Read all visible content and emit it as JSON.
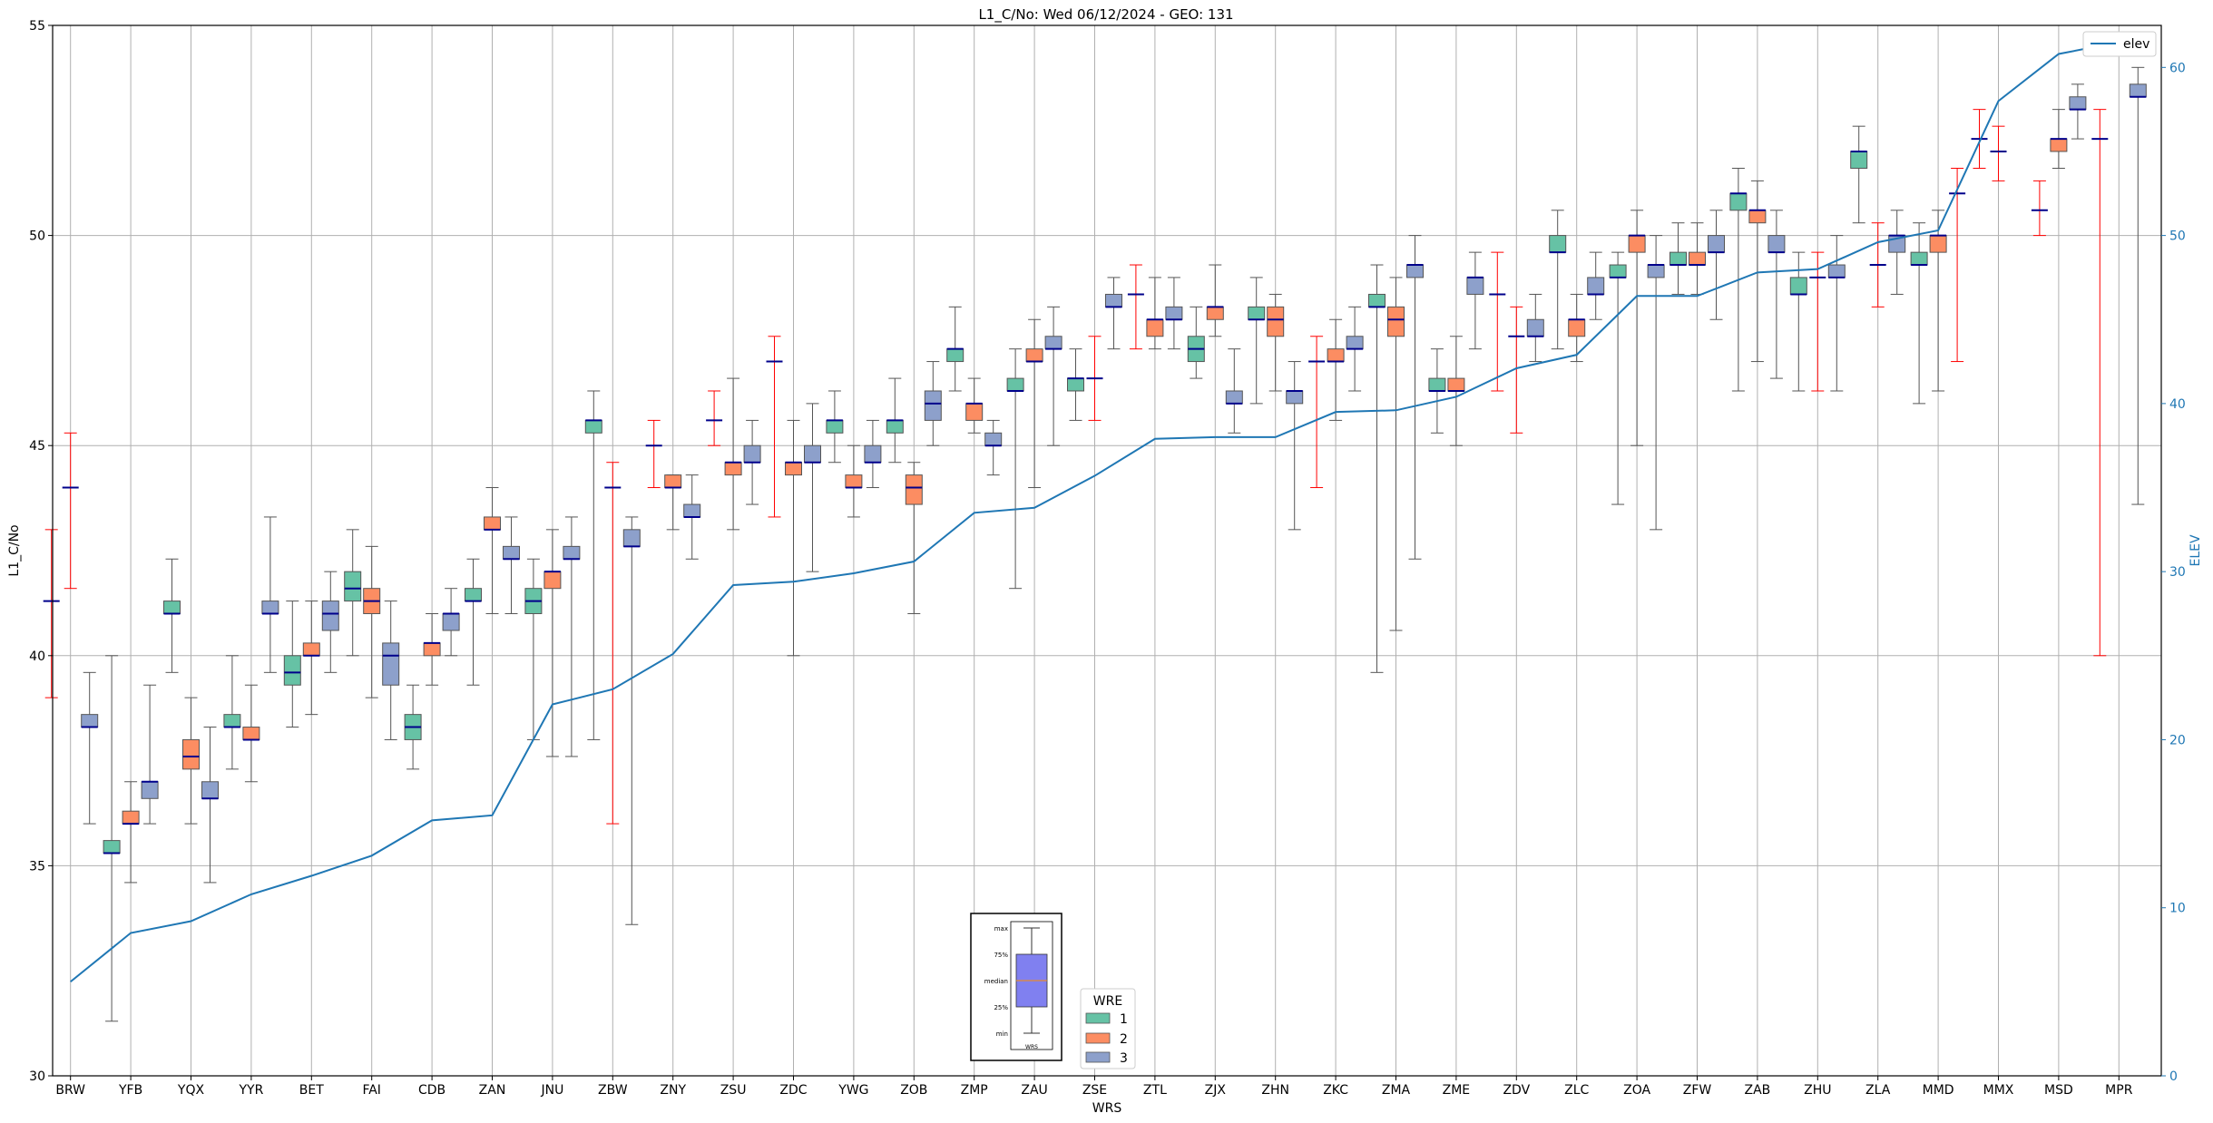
{
  "chart_data": {
    "type": "box",
    "title": "L1_C/No: Wed 06/12/2024 - GEO: 131",
    "xlabel": "WRS",
    "ylabel": "L1_C/No",
    "y2label": "ELEV",
    "ylim": [
      30,
      55
    ],
    "y2lim": [
      0,
      62.5
    ],
    "yticks": [
      "30",
      "35",
      "40",
      "45",
      "50",
      "55"
    ],
    "y2ticks": [
      "0",
      "10",
      "20",
      "30",
      "40",
      "50",
      "60"
    ],
    "grid": true,
    "categories": [
      "BRW",
      "YFB",
      "YQX",
      "YYR",
      "BET",
      "FAI",
      "CDB",
      "ZAN",
      "JNU",
      "ZBW",
      "ZNY",
      "ZSU",
      "ZDC",
      "YWG",
      "ZOB",
      "ZMP",
      "ZAU",
      "ZSE",
      "ZTL",
      "ZJX",
      "ZHN",
      "ZKC",
      "ZMA",
      "ZME",
      "ZDV",
      "ZLC",
      "ZOA",
      "ZFW",
      "ZAB",
      "ZHU",
      "ZLA",
      "MMD",
      "MMX",
      "MSD",
      "MPR"
    ],
    "wre_colors": {
      "1": "#66c2a5",
      "2": "#fc8d62",
      "3": "#8da0cb"
    },
    "flat_whisker_color": "#ff0000",
    "median_color": "#00008b",
    "boxes": [
      {
        "cat": "BRW",
        "wre": "1",
        "min": 39.0,
        "q1": 41.3,
        "median": 41.3,
        "q3": 41.3,
        "max": 43.0
      },
      {
        "cat": "BRW",
        "wre": "2",
        "min": 41.6,
        "q1": 44.0,
        "median": 44.0,
        "q3": 44.0,
        "max": 45.3
      },
      {
        "cat": "BRW",
        "wre": "3",
        "min": 36.0,
        "q1": 38.3,
        "median": 38.3,
        "q3": 38.6,
        "max": 39.6
      },
      {
        "cat": "YFB",
        "wre": "1",
        "min": 31.3,
        "q1": 35.3,
        "median": 35.3,
        "q3": 35.6,
        "max": 40.0
      },
      {
        "cat": "YFB",
        "wre": "2",
        "min": 34.6,
        "q1": 36.0,
        "median": 36.0,
        "q3": 36.3,
        "max": 37.0
      },
      {
        "cat": "YFB",
        "wre": "3",
        "min": 36.0,
        "q1": 36.6,
        "median": 37.0,
        "q3": 37.0,
        "max": 39.3
      },
      {
        "cat": "YQX",
        "wre": "1",
        "min": 39.6,
        "q1": 41.0,
        "median": 41.0,
        "q3": 41.3,
        "max": 42.3
      },
      {
        "cat": "YQX",
        "wre": "2",
        "min": 36.0,
        "q1": 37.3,
        "median": 37.6,
        "q3": 38.0,
        "max": 39.0
      },
      {
        "cat": "YQX",
        "wre": "3",
        "min": 34.6,
        "q1": 36.6,
        "median": 36.6,
        "q3": 37.0,
        "max": 38.3
      },
      {
        "cat": "YYR",
        "wre": "1",
        "min": 37.3,
        "q1": 38.3,
        "median": 38.3,
        "q3": 38.6,
        "max": 40.0
      },
      {
        "cat": "YYR",
        "wre": "2",
        "min": 37.0,
        "q1": 38.0,
        "median": 38.0,
        "q3": 38.3,
        "max": 39.3
      },
      {
        "cat": "YYR",
        "wre": "3",
        "min": 39.6,
        "q1": 41.0,
        "median": 41.0,
        "q3": 41.3,
        "max": 43.3
      },
      {
        "cat": "BET",
        "wre": "1",
        "min": 38.3,
        "q1": 39.3,
        "median": 39.6,
        "q3": 40.0,
        "max": 41.3
      },
      {
        "cat": "BET",
        "wre": "2",
        "min": 38.6,
        "q1": 40.0,
        "median": 40.0,
        "q3": 40.3,
        "max": 41.3
      },
      {
        "cat": "BET",
        "wre": "3",
        "min": 39.6,
        "q1": 40.6,
        "median": 41.0,
        "q3": 41.3,
        "max": 42.0
      },
      {
        "cat": "FAI",
        "wre": "1",
        "min": 40.0,
        "q1": 41.3,
        "median": 41.6,
        "q3": 42.0,
        "max": 43.0
      },
      {
        "cat": "FAI",
        "wre": "2",
        "min": 39.0,
        "q1": 41.0,
        "median": 41.3,
        "q3": 41.6,
        "max": 42.6
      },
      {
        "cat": "FAI",
        "wre": "3",
        "min": 38.0,
        "q1": 39.3,
        "median": 40.0,
        "q3": 40.3,
        "max": 41.3
      },
      {
        "cat": "CDB",
        "wre": "1",
        "min": 37.3,
        "q1": 38.0,
        "median": 38.3,
        "q3": 38.6,
        "max": 39.3
      },
      {
        "cat": "CDB",
        "wre": "2",
        "min": 39.3,
        "q1": 40.0,
        "median": 40.3,
        "q3": 40.3,
        "max": 41.0
      },
      {
        "cat": "CDB",
        "wre": "3",
        "min": 40.0,
        "q1": 40.6,
        "median": 41.0,
        "q3": 41.0,
        "max": 41.6
      },
      {
        "cat": "ZAN",
        "wre": "1",
        "min": 39.3,
        "q1": 41.3,
        "median": 41.3,
        "q3": 41.6,
        "max": 42.3
      },
      {
        "cat": "ZAN",
        "wre": "2",
        "min": 41.0,
        "q1": 43.0,
        "median": 43.0,
        "q3": 43.3,
        "max": 44.0
      },
      {
        "cat": "ZAN",
        "wre": "3",
        "min": 41.0,
        "q1": 42.3,
        "median": 42.3,
        "q3": 42.6,
        "max": 43.3
      },
      {
        "cat": "JNU",
        "wre": "1",
        "min": 38.0,
        "q1": 41.0,
        "median": 41.3,
        "q3": 41.6,
        "max": 42.3
      },
      {
        "cat": "JNU",
        "wre": "2",
        "min": 37.6,
        "q1": 41.6,
        "median": 42.0,
        "q3": 42.0,
        "max": 43.0
      },
      {
        "cat": "JNU",
        "wre": "3",
        "min": 37.6,
        "q1": 42.3,
        "median": 42.3,
        "q3": 42.6,
        "max": 43.3
      },
      {
        "cat": "ZBW",
        "wre": "1",
        "min": 38.0,
        "q1": 45.3,
        "median": 45.6,
        "q3": 45.6,
        "max": 46.3
      },
      {
        "cat": "ZBW",
        "wre": "2",
        "min": 36.0,
        "q1": 44.0,
        "median": 44.0,
        "q3": 44.0,
        "max": 44.6
      },
      {
        "cat": "ZBW",
        "wre": "3",
        "min": 33.6,
        "q1": 42.6,
        "median": 42.6,
        "q3": 43.0,
        "max": 43.3
      },
      {
        "cat": "ZNY",
        "wre": "1",
        "min": 44.0,
        "q1": 45.0,
        "median": 45.0,
        "q3": 45.0,
        "max": 45.6
      },
      {
        "cat": "ZNY",
        "wre": "2",
        "min": 43.0,
        "q1": 44.0,
        "median": 44.0,
        "q3": 44.3,
        "max": 44.3
      },
      {
        "cat": "ZNY",
        "wre": "3",
        "min": 42.3,
        "q1": 43.3,
        "median": 43.3,
        "q3": 43.6,
        "max": 44.3
      },
      {
        "cat": "ZSU",
        "wre": "1",
        "min": 45.0,
        "q1": 45.6,
        "median": 45.6,
        "q3": 45.6,
        "max": 46.3
      },
      {
        "cat": "ZSU",
        "wre": "2",
        "min": 43.0,
        "q1": 44.3,
        "median": 44.6,
        "q3": 44.6,
        "max": 46.6
      },
      {
        "cat": "ZSU",
        "wre": "3",
        "min": 43.6,
        "q1": 44.6,
        "median": 44.6,
        "q3": 45.0,
        "max": 45.6
      },
      {
        "cat": "ZDC",
        "wre": "1",
        "min": 43.3,
        "q1": 47.0,
        "median": 47.0,
        "q3": 47.0,
        "max": 47.6
      },
      {
        "cat": "ZDC",
        "wre": "2",
        "min": 40.0,
        "q1": 44.3,
        "median": 44.6,
        "q3": 44.6,
        "max": 45.6
      },
      {
        "cat": "ZDC",
        "wre": "3",
        "min": 42.0,
        "q1": 44.6,
        "median": 44.6,
        "q3": 45.0,
        "max": 46.0
      },
      {
        "cat": "YWG",
        "wre": "1",
        "min": 44.6,
        "q1": 45.3,
        "median": 45.6,
        "q3": 45.6,
        "max": 46.3
      },
      {
        "cat": "YWG",
        "wre": "2",
        "min": 43.3,
        "q1": 44.0,
        "median": 44.0,
        "q3": 44.3,
        "max": 45.0
      },
      {
        "cat": "YWG",
        "wre": "3",
        "min": 44.0,
        "q1": 44.6,
        "median": 44.6,
        "q3": 45.0,
        "max": 45.6
      },
      {
        "cat": "ZOB",
        "wre": "1",
        "min": 44.6,
        "q1": 45.3,
        "median": 45.6,
        "q3": 45.6,
        "max": 46.6
      },
      {
        "cat": "ZOB",
        "wre": "2",
        "min": 41.0,
        "q1": 43.6,
        "median": 44.0,
        "q3": 44.3,
        "max": 44.6
      },
      {
        "cat": "ZOB",
        "wre": "3",
        "min": 45.0,
        "q1": 45.6,
        "median": 46.0,
        "q3": 46.3,
        "max": 47.0
      },
      {
        "cat": "ZMP",
        "wre": "1",
        "min": 46.3,
        "q1": 47.0,
        "median": 47.3,
        "q3": 47.3,
        "max": 48.3
      },
      {
        "cat": "ZMP",
        "wre": "2",
        "min": 45.3,
        "q1": 45.6,
        "median": 46.0,
        "q3": 46.0,
        "max": 46.6
      },
      {
        "cat": "ZMP",
        "wre": "3",
        "min": 44.3,
        "q1": 45.0,
        "median": 45.0,
        "q3": 45.3,
        "max": 45.6
      },
      {
        "cat": "ZAU",
        "wre": "1",
        "min": 41.6,
        "q1": 46.3,
        "median": 46.3,
        "q3": 46.6,
        "max": 47.3
      },
      {
        "cat": "ZAU",
        "wre": "2",
        "min": 44.0,
        "q1": 47.0,
        "median": 47.0,
        "q3": 47.3,
        "max": 48.0
      },
      {
        "cat": "ZAU",
        "wre": "3",
        "min": 45.0,
        "q1": 47.3,
        "median": 47.3,
        "q3": 47.6,
        "max": 48.3
      },
      {
        "cat": "ZSE",
        "wre": "1",
        "min": 45.6,
        "q1": 46.3,
        "median": 46.6,
        "q3": 46.6,
        "max": 47.3
      },
      {
        "cat": "ZSE",
        "wre": "2",
        "min": 45.6,
        "q1": 46.6,
        "median": 46.6,
        "q3": 46.6,
        "max": 47.6
      },
      {
        "cat": "ZSE",
        "wre": "3",
        "min": 47.3,
        "q1": 48.3,
        "median": 48.3,
        "q3": 48.6,
        "max": 49.0
      },
      {
        "cat": "ZTL",
        "wre": "1",
        "min": 47.3,
        "q1": 48.6,
        "median": 48.6,
        "q3": 48.6,
        "max": 49.3
      },
      {
        "cat": "ZTL",
        "wre": "2",
        "min": 47.3,
        "q1": 47.6,
        "median": 48.0,
        "q3": 48.0,
        "max": 49.0
      },
      {
        "cat": "ZTL",
        "wre": "3",
        "min": 47.3,
        "q1": 48.0,
        "median": 48.0,
        "q3": 48.3,
        "max": 49.0
      },
      {
        "cat": "ZJX",
        "wre": "1",
        "min": 46.6,
        "q1": 47.0,
        "median": 47.3,
        "q3": 47.6,
        "max": 48.3
      },
      {
        "cat": "ZJX",
        "wre": "2",
        "min": 47.6,
        "q1": 48.0,
        "median": 48.3,
        "q3": 48.3,
        "max": 49.3
      },
      {
        "cat": "ZJX",
        "wre": "3",
        "min": 45.3,
        "q1": 46.0,
        "median": 46.0,
        "q3": 46.3,
        "max": 47.3
      },
      {
        "cat": "ZHN",
        "wre": "1",
        "min": 46.0,
        "q1": 48.0,
        "median": 48.0,
        "q3": 48.3,
        "max": 49.0
      },
      {
        "cat": "ZHN",
        "wre": "2",
        "min": 46.3,
        "q1": 47.6,
        "median": 48.0,
        "q3": 48.3,
        "max": 48.6
      },
      {
        "cat": "ZHN",
        "wre": "3",
        "min": 43.0,
        "q1": 46.0,
        "median": 46.3,
        "q3": 46.3,
        "max": 47.0
      },
      {
        "cat": "ZKC",
        "wre": "1",
        "min": 44.0,
        "q1": 47.0,
        "median": 47.0,
        "q3": 47.0,
        "max": 47.6
      },
      {
        "cat": "ZKC",
        "wre": "2",
        "min": 45.6,
        "q1": 47.0,
        "median": 47.0,
        "q3": 47.3,
        "max": 48.0
      },
      {
        "cat": "ZKC",
        "wre": "3",
        "min": 46.3,
        "q1": 47.3,
        "median": 47.3,
        "q3": 47.6,
        "max": 48.3
      },
      {
        "cat": "ZMA",
        "wre": "1",
        "min": 39.6,
        "q1": 48.3,
        "median": 48.3,
        "q3": 48.6,
        "max": 49.3
      },
      {
        "cat": "ZMA",
        "wre": "2",
        "min": 40.6,
        "q1": 47.6,
        "median": 48.0,
        "q3": 48.3,
        "max": 49.0
      },
      {
        "cat": "ZMA",
        "wre": "3",
        "min": 42.3,
        "q1": 49.0,
        "median": 49.3,
        "q3": 49.3,
        "max": 50.0
      },
      {
        "cat": "ZME",
        "wre": "1",
        "min": 45.3,
        "q1": 46.3,
        "median": 46.3,
        "q3": 46.6,
        "max": 47.3
      },
      {
        "cat": "ZME",
        "wre": "2",
        "min": 45.0,
        "q1": 46.3,
        "median": 46.3,
        "q3": 46.6,
        "max": 47.6
      },
      {
        "cat": "ZME",
        "wre": "3",
        "min": 47.3,
        "q1": 48.6,
        "median": 49.0,
        "q3": 49.0,
        "max": 49.6
      },
      {
        "cat": "ZDV",
        "wre": "1",
        "min": 46.3,
        "q1": 48.6,
        "median": 48.6,
        "q3": 48.6,
        "max": 49.6
      },
      {
        "cat": "ZDV",
        "wre": "2",
        "min": 45.3,
        "q1": 47.6,
        "median": 47.6,
        "q3": 47.6,
        "max": 48.3
      },
      {
        "cat": "ZDV",
        "wre": "3",
        "min": 47.0,
        "q1": 47.6,
        "median": 47.6,
        "q3": 48.0,
        "max": 48.6
      },
      {
        "cat": "ZLC",
        "wre": "1",
        "min": 47.3,
        "q1": 49.6,
        "median": 49.6,
        "q3": 50.0,
        "max": 50.6
      },
      {
        "cat": "ZLC",
        "wre": "2",
        "min": 47.0,
        "q1": 47.6,
        "median": 48.0,
        "q3": 48.0,
        "max": 48.6
      },
      {
        "cat": "ZLC",
        "wre": "3",
        "min": 48.0,
        "q1": 48.6,
        "median": 48.6,
        "q3": 49.0,
        "max": 49.6
      },
      {
        "cat": "ZOA",
        "wre": "1",
        "min": 43.6,
        "q1": 49.0,
        "median": 49.0,
        "q3": 49.3,
        "max": 49.6
      },
      {
        "cat": "ZOA",
        "wre": "2",
        "min": 45.0,
        "q1": 49.6,
        "median": 50.0,
        "q3": 50.0,
        "max": 50.6
      },
      {
        "cat": "ZOA",
        "wre": "3",
        "min": 43.0,
        "q1": 49.0,
        "median": 49.3,
        "q3": 49.3,
        "max": 50.0
      },
      {
        "cat": "ZFW",
        "wre": "1",
        "min": 48.6,
        "q1": 49.3,
        "median": 49.3,
        "q3": 49.6,
        "max": 50.3
      },
      {
        "cat": "ZFW",
        "wre": "2",
        "min": 48.6,
        "q1": 49.3,
        "median": 49.3,
        "q3": 49.6,
        "max": 50.3
      },
      {
        "cat": "ZFW",
        "wre": "3",
        "min": 48.0,
        "q1": 49.6,
        "median": 49.6,
        "q3": 50.0,
        "max": 50.6
      },
      {
        "cat": "ZAB",
        "wre": "1",
        "min": 46.3,
        "q1": 50.6,
        "median": 51.0,
        "q3": 51.0,
        "max": 51.6
      },
      {
        "cat": "ZAB",
        "wre": "2",
        "min": 47.0,
        "q1": 50.3,
        "median": 50.6,
        "q3": 50.6,
        "max": 51.3
      },
      {
        "cat": "ZAB",
        "wre": "3",
        "min": 46.6,
        "q1": 49.6,
        "median": 49.6,
        "q3": 50.0,
        "max": 50.6
      },
      {
        "cat": "ZHU",
        "wre": "1",
        "min": 46.3,
        "q1": 48.6,
        "median": 48.6,
        "q3": 49.0,
        "max": 49.6
      },
      {
        "cat": "ZHU",
        "wre": "2",
        "min": 46.3,
        "q1": 49.0,
        "median": 49.0,
        "q3": 49.0,
        "max": 49.6
      },
      {
        "cat": "ZHU",
        "wre": "3",
        "min": 46.3,
        "q1": 49.0,
        "median": 49.0,
        "q3": 49.3,
        "max": 50.0
      },
      {
        "cat": "ZLA",
        "wre": "1",
        "min": 50.3,
        "q1": 51.6,
        "median": 52.0,
        "q3": 52.0,
        "max": 52.6
      },
      {
        "cat": "ZLA",
        "wre": "2",
        "min": 48.3,
        "q1": 49.3,
        "median": 49.3,
        "q3": 49.3,
        "max": 50.3
      },
      {
        "cat": "ZLA",
        "wre": "3",
        "min": 48.6,
        "q1": 49.6,
        "median": 50.0,
        "q3": 50.0,
        "max": 50.6
      },
      {
        "cat": "MMD",
        "wre": "1",
        "min": 46.0,
        "q1": 49.3,
        "median": 49.3,
        "q3": 49.6,
        "max": 50.3
      },
      {
        "cat": "MMD",
        "wre": "2",
        "min": 46.3,
        "q1": 49.6,
        "median": 50.0,
        "q3": 50.0,
        "max": 50.6
      },
      {
        "cat": "MMD",
        "wre": "3",
        "min": 47.0,
        "q1": 51.0,
        "median": 51.0,
        "q3": 51.0,
        "max": 51.6
      },
      {
        "cat": "MMX",
        "wre": "1",
        "min": 51.6,
        "q1": 52.3,
        "median": 52.3,
        "q3": 52.3,
        "max": 53.0
      },
      {
        "cat": "MMX",
        "wre": "2",
        "min": 51.3,
        "q1": 52.0,
        "median": 52.0,
        "q3": 52.0,
        "max": 52.6
      },
      {
        "cat": "MSD",
        "wre": "1",
        "min": 50.0,
        "q1": 50.6,
        "median": 50.6,
        "q3": 50.6,
        "max": 51.3
      },
      {
        "cat": "MSD",
        "wre": "2",
        "min": 51.6,
        "q1": 52.0,
        "median": 52.3,
        "q3": 52.3,
        "max": 53.0
      },
      {
        "cat": "MSD",
        "wre": "3",
        "min": 52.3,
        "q1": 53.0,
        "median": 53.0,
        "q3": 53.3,
        "max": 53.6
      },
      {
        "cat": "MPR",
        "wre": "1",
        "min": 40.0,
        "q1": 52.3,
        "median": 52.3,
        "q3": 52.3,
        "max": 53.0
      },
      {
        "cat": "MPR",
        "wre": "3",
        "min": 43.6,
        "q1": 53.3,
        "median": 53.3,
        "q3": 53.6,
        "max": 54.0
      }
    ],
    "elev_series": {
      "name": "elev",
      "color": "#1f77b4",
      "values": [
        5.6,
        8.5,
        9.2,
        10.8,
        11.9,
        13.1,
        15.2,
        15.5,
        22.1,
        23.0,
        25.1,
        29.2,
        29.4,
        29.9,
        30.6,
        33.5,
        33.8,
        35.7,
        37.9,
        38.0,
        38.0,
        39.5,
        39.6,
        40.4,
        42.1,
        42.9,
        46.4,
        46.4,
        47.8,
        48.0,
        49.6,
        50.3,
        58.0,
        60.8,
        61.5
      ]
    },
    "legend_elev": {
      "label": "elev",
      "position": "top-right"
    },
    "legend_wre": {
      "title": "WRE",
      "labels": [
        "1",
        "2",
        "3"
      ]
    },
    "inset_key": {
      "labels": [
        "max",
        "75%",
        "median",
        "25%",
        "min"
      ],
      "xlabel": "WRS",
      "box_color": "#8080f0",
      "median_line_color": "#ff8c00"
    }
  }
}
